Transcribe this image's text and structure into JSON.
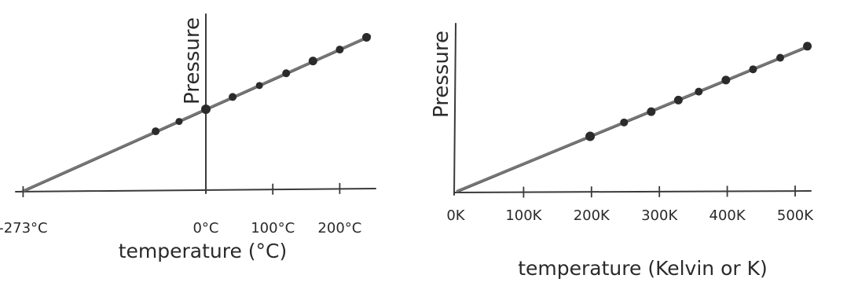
{
  "chart_data": [
    {
      "type": "scatter",
      "ylabel": "Pressure",
      "xlabel": "temperature (°C)",
      "x_ticks": [
        "-273°C",
        "0°C",
        "100°C",
        "200°C"
      ],
      "x_tick_values": [
        -273,
        0,
        100,
        200
      ],
      "xlim": [
        -273,
        250
      ],
      "y_axis_at_x": 0,
      "grid": false,
      "trend_line": true,
      "series": [
        {
          "x": [
            -75,
            -40,
            0,
            40,
            80,
            120,
            160,
            200,
            240
          ],
          "y": [
            0.73,
            0.85,
            1.0,
            1.15,
            1.29,
            1.44,
            1.59,
            1.73,
            1.88
          ]
        }
      ]
    },
    {
      "type": "scatter",
      "ylabel": "Pressure",
      "xlabel": "temperature (Kelvin or K)",
      "x_ticks": [
        "0K",
        "100K",
        "200K",
        "300K",
        "400K",
        "500K"
      ],
      "x_tick_values": [
        0,
        100,
        200,
        300,
        400,
        500
      ],
      "xlim": [
        0,
        540
      ],
      "y_axis_at_x": 0,
      "grid": false,
      "trend_line": true,
      "series": [
        {
          "x": [
            198,
            248,
            288,
            328,
            358,
            398,
            438,
            478,
            518
          ],
          "y": [
            0.73,
            0.91,
            1.05,
            1.2,
            1.31,
            1.46,
            1.6,
            1.75,
            1.9
          ]
        }
      ]
    }
  ]
}
